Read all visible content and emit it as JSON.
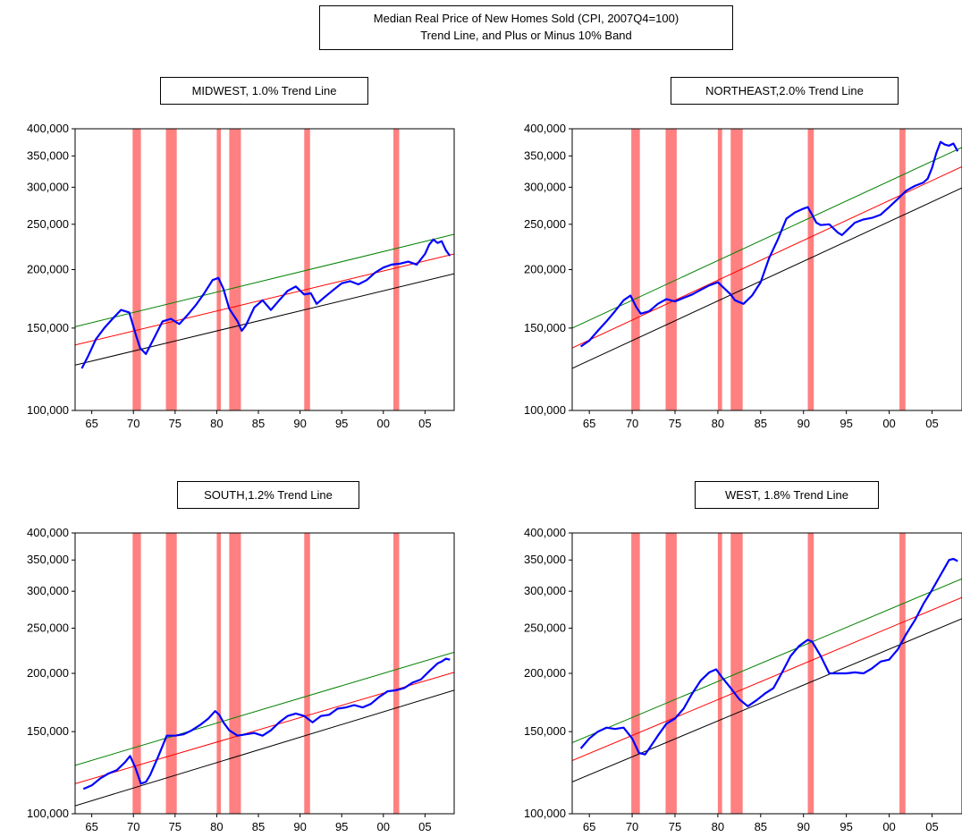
{
  "figure_title": {
    "line1": "Median Real Price of New Homes Sold (CPI, 2007Q4=100)",
    "line2": "Trend Line, and Plus or Minus 10% Band"
  },
  "colors": {
    "actual": "#0000ff",
    "trend": "#ff0000",
    "upper": "#008000",
    "lower": "#000000",
    "recession": "#ff8080"
  },
  "chart_data": [
    {
      "type": "line",
      "title": "MIDWEST, 1.0% Trend Line",
      "y_scale": "log",
      "ylim": [
        100000,
        400000
      ],
      "yticks": [
        "100,000",
        "150,000",
        "200,000",
        "250,000",
        "300,000",
        "350,000",
        "400,000"
      ],
      "xlim": [
        1963,
        2008.5
      ],
      "xticks": [
        "65",
        "70",
        "75",
        "80",
        "85",
        "90",
        "95",
        "00",
        "05"
      ],
      "recessions": [
        [
          1969.9,
          1970.9
        ],
        [
          1973.9,
          1975.2
        ],
        [
          1980.0,
          1980.5
        ],
        [
          1981.5,
          1982.9
        ],
        [
          1990.5,
          1991.2
        ],
        [
          2001.2,
          2001.9
        ]
      ],
      "trend": {
        "x": [
          1963,
          2008.5
        ],
        "y": [
          138000,
          216000
        ]
      },
      "upper_band": {
        "x": [
          1963,
          2008.5
        ],
        "y": [
          151000,
          238000
        ]
      },
      "lower_band": {
        "x": [
          1963,
          2008.5
        ],
        "y": [
          125000,
          196000
        ]
      },
      "series": [
        {
          "name": "actual",
          "x": [
            1963.8,
            1964.5,
            1965.5,
            1966.5,
            1967.5,
            1968.5,
            1969.5,
            1970.3,
            1970.8,
            1971.5,
            1972.5,
            1973.5,
            1974.5,
            1975.5,
            1976.5,
            1977.5,
            1978.5,
            1979.5,
            1980.2,
            1980.8,
            1981.5,
            1982.5,
            1983.0,
            1983.5,
            1984.5,
            1985.5,
            1986.5,
            1987.5,
            1988.5,
            1989.5,
            1990.5,
            1991.3,
            1992.0,
            1993.0,
            1994.0,
            1995.0,
            1996.0,
            1997.0,
            1998.0,
            1999.0,
            2000.0,
            2001.0,
            2002.0,
            2003.0,
            2004.0,
            2005.0,
            2005.5,
            2006.0,
            2006.5,
            2007.0,
            2007.5,
            2008.0
          ],
          "y": [
            123000,
            130000,
            142000,
            150000,
            157000,
            164000,
            162000,
            145000,
            136000,
            132000,
            143000,
            155000,
            157000,
            153000,
            160000,
            168000,
            178000,
            190000,
            192000,
            182000,
            165000,
            155000,
            148000,
            152000,
            166000,
            172000,
            164000,
            172000,
            180000,
            184000,
            177000,
            178000,
            169000,
            175000,
            181000,
            187000,
            189000,
            186000,
            190000,
            197000,
            202000,
            205000,
            206000,
            208000,
            205000,
            216000,
            226000,
            232000,
            228000,
            230000,
            220000,
            214000
          ]
        }
      ]
    },
    {
      "type": "line",
      "title": "NORTHEAST,2.0% Trend Line",
      "y_scale": "log",
      "ylim": [
        100000,
        400000
      ],
      "yticks": [
        "100,000",
        "150,000",
        "200,000",
        "250,000",
        "300,000",
        "350,000",
        "400,000"
      ],
      "xlim": [
        1963,
        2008.5
      ],
      "xticks": [
        "65",
        "70",
        "75",
        "80",
        "85",
        "90",
        "95",
        "00",
        "05"
      ],
      "recessions": [
        [
          1969.9,
          1970.9
        ],
        [
          1973.9,
          1975.2
        ],
        [
          1980.0,
          1980.5
        ],
        [
          1981.5,
          1982.9
        ],
        [
          1990.5,
          1991.2
        ],
        [
          2001.2,
          2001.9
        ]
      ],
      "trend": {
        "x": [
          1963,
          2008.5
        ],
        "y": [
          136000,
          332000
        ]
      },
      "upper_band": {
        "x": [
          1963,
          2008.5
        ],
        "y": [
          150000,
          365000
        ]
      },
      "lower_band": {
        "x": [
          1963,
          2008.5
        ],
        "y": [
          123000,
          299000
        ]
      },
      "series": [
        {
          "name": "actual",
          "x": [
            1964.0,
            1965.0,
            1966.0,
            1967.0,
            1968.0,
            1969.0,
            1969.8,
            1970.5,
            1971.0,
            1972.0,
            1973.0,
            1974.0,
            1975.0,
            1976.0,
            1977.0,
            1978.0,
            1979.0,
            1980.0,
            1980.8,
            1981.5,
            1982.0,
            1983.0,
            1984.0,
            1985.0,
            1986.0,
            1987.0,
            1988.0,
            1989.0,
            1990.0,
            1990.5,
            1991.0,
            1991.5,
            1992.0,
            1993.0,
            1994.0,
            1994.5,
            1995.0,
            1996.0,
            1997.0,
            1998.0,
            1999.0,
            2000.0,
            2001.0,
            2002.0,
            2003.0,
            2004.0,
            2004.5,
            2005.0,
            2005.5,
            2006.0,
            2006.5,
            2007.0,
            2007.5,
            2008.0
          ],
          "y": [
            137000,
            141000,
            148000,
            155000,
            163000,
            172000,
            176000,
            166000,
            161000,
            163000,
            169000,
            173000,
            171000,
            174000,
            177000,
            181000,
            185000,
            188000,
            182000,
            177000,
            172000,
            169000,
            176000,
            188000,
            212000,
            232000,
            257000,
            265000,
            270000,
            272000,
            262000,
            252000,
            249000,
            250000,
            240000,
            237000,
            242000,
            252000,
            256000,
            258000,
            262000,
            272000,
            283000,
            295000,
            302000,
            307000,
            313000,
            330000,
            355000,
            375000,
            370000,
            368000,
            372000,
            358000
          ]
        }
      ]
    },
    {
      "type": "line",
      "title": "SOUTH,1.2% Trend Line",
      "y_scale": "log",
      "ylim": [
        100000,
        400000
      ],
      "yticks": [
        "100,000",
        "150,000",
        "200,000",
        "250,000",
        "300,000",
        "350,000",
        "400,000"
      ],
      "xlim": [
        1963,
        2008.5
      ],
      "xticks": [
        "65",
        "70",
        "75",
        "80",
        "85",
        "90",
        "95",
        "00",
        "05"
      ],
      "recessions": [
        [
          1969.9,
          1970.9
        ],
        [
          1973.9,
          1975.2
        ],
        [
          1980.0,
          1980.5
        ],
        [
          1981.5,
          1982.9
        ],
        [
          1990.5,
          1991.2
        ],
        [
          2001.2,
          2001.9
        ]
      ],
      "trend": {
        "x": [
          1963,
          2008.5
        ],
        "y": [
          116000,
          201000
        ]
      },
      "upper_band": {
        "x": [
          1963,
          2008.5
        ],
        "y": [
          127000,
          222000
        ]
      },
      "lower_band": {
        "x": [
          1963,
          2008.5
        ],
        "y": [
          104000,
          184000
        ]
      },
      "series": [
        {
          "name": "actual",
          "x": [
            1964.0,
            1965.0,
            1966.0,
            1967.0,
            1968.0,
            1969.0,
            1969.6,
            1970.2,
            1970.9,
            1971.5,
            1972.0,
            1973.0,
            1974.0,
            1975.0,
            1976.0,
            1977.0,
            1978.0,
            1979.0,
            1979.8,
            1980.3,
            1980.8,
            1981.5,
            1982.5,
            1983.5,
            1984.5,
            1985.5,
            1986.5,
            1987.5,
            1988.5,
            1989.5,
            1990.5,
            1991.5,
            1992.5,
            1993.5,
            1994.5,
            1995.5,
            1996.5,
            1997.5,
            1998.5,
            1999.5,
            2000.5,
            2001.5,
            2002.5,
            2003.5,
            2004.5,
            2005.5,
            2006.5,
            2007.0,
            2007.5,
            2008.0
          ],
          "y": [
            113000,
            115000,
            119000,
            122000,
            124000,
            129000,
            133000,
            126000,
            116000,
            117000,
            121000,
            133000,
            147000,
            147000,
            148000,
            151000,
            155000,
            160000,
            166000,
            163000,
            157000,
            151000,
            147000,
            148000,
            149000,
            147000,
            151000,
            157000,
            162000,
            164000,
            162000,
            157000,
            162000,
            163000,
            168000,
            169000,
            171000,
            169000,
            172000,
            178000,
            183000,
            184000,
            186000,
            191000,
            194000,
            202000,
            210000,
            212000,
            215000,
            214000
          ]
        }
      ]
    },
    {
      "type": "line",
      "title": "WEST, 1.8% Trend Line",
      "y_scale": "log",
      "ylim": [
        100000,
        400000
      ],
      "yticks": [
        "100,000",
        "150,000",
        "200,000",
        "250,000",
        "300,000",
        "350,000",
        "400,000"
      ],
      "xlim": [
        1963,
        2008.5
      ],
      "xticks": [
        "65",
        "70",
        "75",
        "80",
        "85",
        "90",
        "95",
        "00",
        "05"
      ],
      "recessions": [
        [
          1969.9,
          1970.9
        ],
        [
          1973.9,
          1975.2
        ],
        [
          1980.0,
          1980.5
        ],
        [
          1981.5,
          1982.9
        ],
        [
          1990.5,
          1991.2
        ],
        [
          2001.2,
          2001.9
        ]
      ],
      "trend": {
        "x": [
          1963,
          2008.5
        ],
        "y": [
          130000,
          291000
        ]
      },
      "upper_band": {
        "x": [
          1963,
          2008.5
        ],
        "y": [
          142000,
          319000
        ]
      },
      "lower_band": {
        "x": [
          1963,
          2008.5
        ],
        "y": [
          117000,
          262000
        ]
      },
      "series": [
        {
          "name": "actual",
          "x": [
            1964.0,
            1965.0,
            1966.0,
            1967.0,
            1968.0,
            1969.0,
            1970.0,
            1970.8,
            1971.5,
            1972.0,
            1973.0,
            1974.0,
            1975.0,
            1976.0,
            1977.0,
            1978.0,
            1979.0,
            1979.8,
            1980.5,
            1981.5,
            1982.5,
            1983.5,
            1984.5,
            1985.5,
            1986.5,
            1987.5,
            1988.5,
            1989.5,
            1990.5,
            1991.0,
            1992.0,
            1993.0,
            1994.0,
            1995.0,
            1996.0,
            1997.0,
            1998.0,
            1999.0,
            2000.0,
            2001.0,
            2002.0,
            2003.0,
            2004.0,
            2005.0,
            2006.0,
            2007.0,
            2007.5,
            2008.0
          ],
          "y": [
            138000,
            145000,
            150000,
            153000,
            152000,
            153000,
            145000,
            135000,
            134000,
            138000,
            147000,
            156000,
            160000,
            168000,
            181000,
            193000,
            201000,
            204000,
            196000,
            186000,
            176000,
            170000,
            175000,
            181000,
            186000,
            201000,
            218000,
            229000,
            236000,
            234000,
            218000,
            200000,
            200000,
            200000,
            201000,
            200000,
            205000,
            212000,
            214000,
            225000,
            243000,
            260000,
            282000,
            302000,
            325000,
            350000,
            352000,
            348000
          ]
        }
      ]
    }
  ]
}
